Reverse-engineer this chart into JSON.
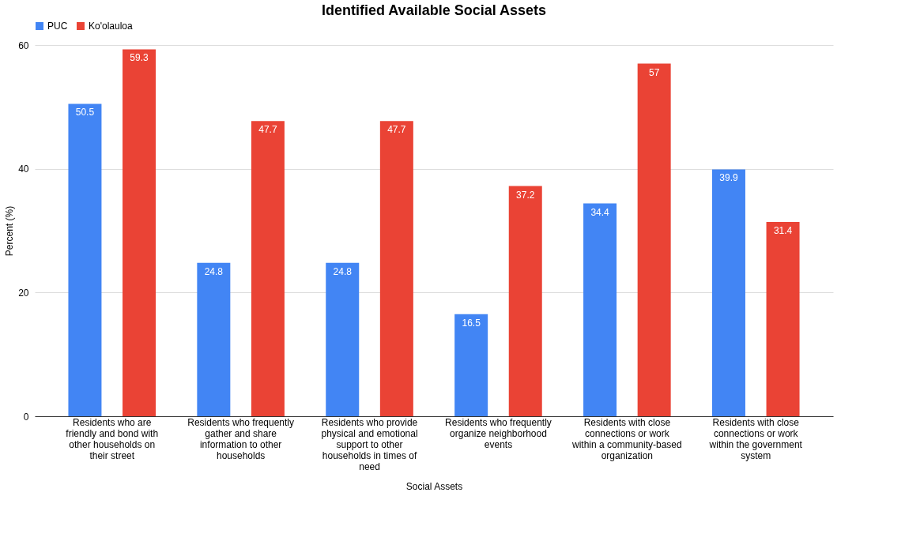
{
  "chart_data": {
    "type": "bar",
    "title": "Identified Available Social Assets",
    "xlabel": "Social Assets",
    "ylabel": "Percent (%)",
    "categories": [
      "Residents who are friendly and bond with other households on their street",
      "Residents who frequently gather and share information to other households",
      "Residents who provide physical and emotional support to other households in times of need",
      "Residents who frequently organize neighborhood events",
      "Residents with close connections or work within a community-based organization",
      "Residents with close connections or work within the government system"
    ],
    "series": [
      {
        "name": "PUC",
        "color": "#4285f4",
        "values": [
          50.5,
          24.8,
          24.8,
          16.5,
          34.4,
          39.9
        ]
      },
      {
        "name": "Ko'olauloa",
        "color": "#ea4335",
        "values": [
          59.3,
          47.7,
          47.7,
          37.2,
          57,
          31.4
        ]
      }
    ],
    "ylim": [
      0,
      60
    ],
    "yticks": [
      0,
      20,
      40,
      60
    ],
    "grid": "y",
    "legend": "top",
    "data_labels": true
  }
}
